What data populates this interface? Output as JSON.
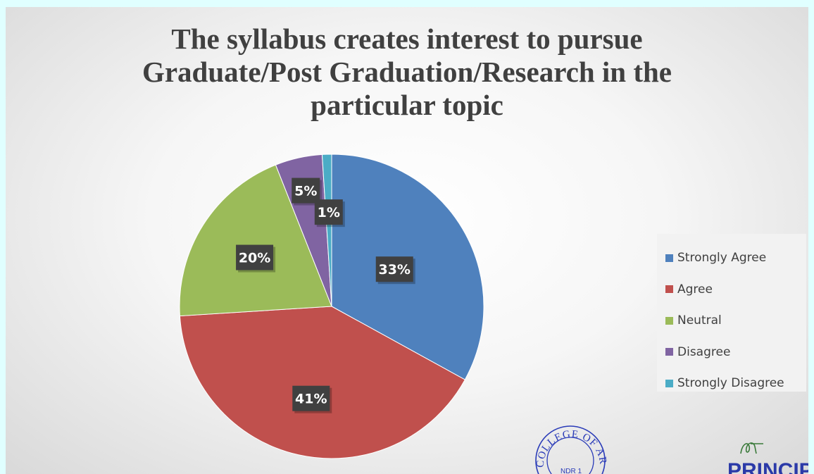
{
  "chart_data": {
    "type": "pie",
    "title": "The syllabus creates interest to pursue Graduate/Post Graduation/Research in the particular topic",
    "categories": [
      "Strongly Agree",
      "Agree",
      "Neutral",
      "Disagree",
      "Strongly Disagree"
    ],
    "values": [
      33,
      41,
      20,
      5,
      1
    ],
    "data_labels": [
      "33%",
      "41%",
      "20%",
      "5%",
      "1%"
    ],
    "colors": [
      "#4f81bd",
      "#c0504d",
      "#9bbb59",
      "#8064a2",
      "#4bacc6"
    ],
    "legend_position": "right"
  },
  "stamp": {
    "seal_text": "COLLEGE OF ARTS &",
    "signature_text": "PRINCIP"
  }
}
